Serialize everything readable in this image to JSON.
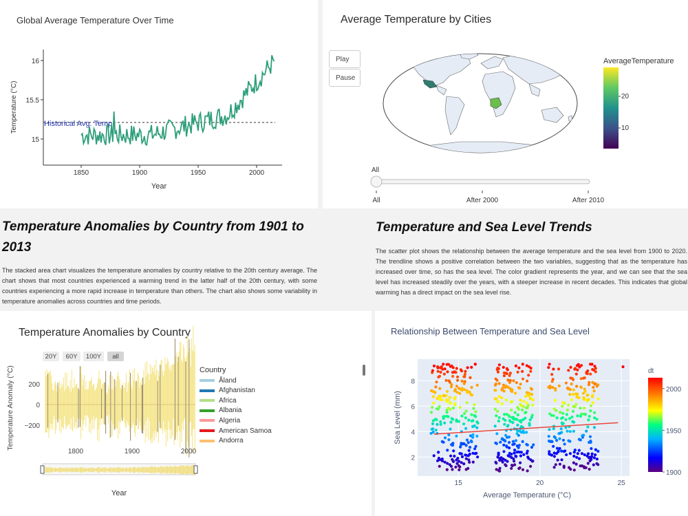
{
  "panel_global": {
    "title": "Global Average Temperature Over Time",
    "xlabel": "Year",
    "ylabel": "Temperature (°C)",
    "xticks": [
      "1850",
      "1900",
      "1950",
      "2000"
    ],
    "yticks": [
      "15",
      "15.5",
      "16"
    ],
    "annotation": "Historical Avg. Temp",
    "line_color": "#2e9e7a"
  },
  "panel_map": {
    "title": "Average Temperature by Cities",
    "play_label": "Play",
    "pause_label": "Pause",
    "colorbar_title": "AverageTemperature",
    "colorbar_ticks": [
      "20",
      "10"
    ],
    "slider_current": "All",
    "slider_ticks": [
      "All",
      "After 2000",
      "After 2010"
    ],
    "land_color": "#e5ecf6",
    "highlight_colors": [
      "#2e7d6f",
      "#6abf4b"
    ]
  },
  "section_anomalies": {
    "title": "Temperature Anomalies by Country from 1901 to 2013",
    "text": "The stacked area chart visualizes the temperature anomalies by country relative to the 20th century average. The chart shows that most countries experienced a warming trend in the latter half of the 20th century, with some countries experiencing a more rapid increase in temperature than others. The chart also shows some variability in temperature anomalies across countries and time periods."
  },
  "section_sealevel": {
    "title": "Temperature and Sea Level Trends",
    "text": "The scatter plot shows the relationship between the average temperature and the sea level from 1900 to 2020. The trendline shows a positive correlation between the two variables, suggesting that as the temperature has increased over time, so has the sea level. The color gradient represents the year, and we can see that the sea level has increased steadily over the years, with a steeper increase in recent decades. This indicates that global warming has a direct impact on the sea level rise."
  },
  "panel_anomaly": {
    "title": "Temperature Anomalies by Country",
    "range_buttons": [
      "20Y",
      "60Y",
      "100Y",
      "all"
    ],
    "active_range": "all",
    "ylabel": "Temperature Anomaly (°C)",
    "xlabel": "Year",
    "xticks": [
      "1800",
      "1900",
      "2000"
    ],
    "yticks": [
      "200",
      "0",
      "−200"
    ],
    "legend_title": "Country",
    "legend": [
      {
        "name": "Åland",
        "color": "#a6cee3"
      },
      {
        "name": "Afghanistan",
        "color": "#1f78b4"
      },
      {
        "name": "Africa",
        "color": "#b2df8a"
      },
      {
        "name": "Albania",
        "color": "#33a02c"
      },
      {
        "name": "Algeria",
        "color": "#fb9a99"
      },
      {
        "name": "American Samoa",
        "color": "#e31a1c"
      },
      {
        "name": "Andorra",
        "color": "#fdbf6f"
      }
    ]
  },
  "chart_data": {
    "type": "scatter",
    "title": "Relationship Between Temperature and Sea Level",
    "xlabel": "Average Temperature (°C)",
    "ylabel": "Sea Level (mm)",
    "xlim": [
      12.5,
      25.5
    ],
    "ylim": [
      0.5,
      9.7
    ],
    "xticks": [
      15,
      20,
      25
    ],
    "yticks": [
      2,
      4,
      6,
      8
    ],
    "colorbar_title": "dt",
    "colorbar_range": [
      1900,
      2013
    ],
    "colorbar_ticks": [
      2000,
      1950,
      1900
    ],
    "trendline": {
      "x": [
        13.5,
        24.8
      ],
      "y": [
        3.8,
        4.7
      ],
      "color": "#e8473b"
    },
    "clusters": [
      {
        "x_min": 13.3,
        "x_max": 16.2
      },
      {
        "x_min": 17.2,
        "x_max": 19.6
      },
      {
        "x_min": 20.5,
        "x_max": 23.6
      }
    ],
    "outlier": {
      "x": 25.1,
      "y": 9.1
    }
  }
}
